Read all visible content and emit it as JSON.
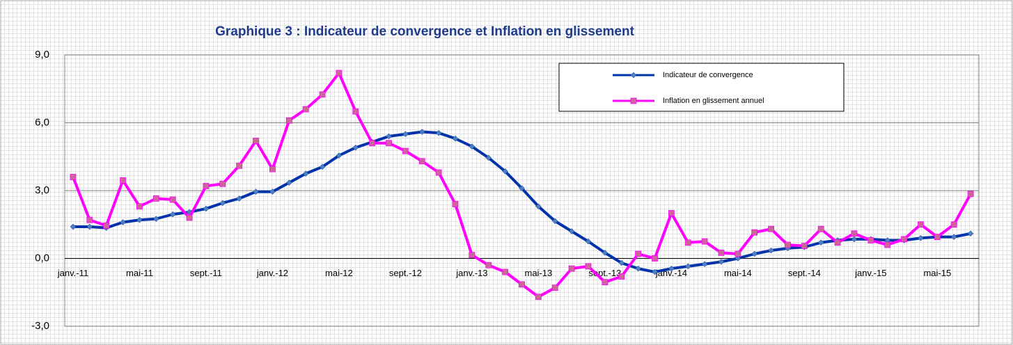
{
  "chart_data": {
    "type": "line",
    "title": "Graphique 3 : Indicateur de convergence et Inflation en glissement",
    "categories": [
      "janv.-11",
      null,
      null,
      null,
      "mai-11",
      null,
      null,
      null,
      "sept.-11",
      null,
      null,
      null,
      "janv.-12",
      null,
      null,
      null,
      "mai-12",
      null,
      null,
      null,
      "sept.-12",
      null,
      null,
      null,
      "janv.-13",
      null,
      null,
      null,
      "mai-13",
      null,
      null,
      null,
      "sept.-13",
      null,
      null,
      null,
      "janv.-14",
      null,
      null,
      null,
      "mai-14",
      null,
      null,
      null,
      "sept.-14",
      null,
      null,
      null,
      "janv.-15",
      null,
      null,
      null,
      "mai-15",
      null,
      null
    ],
    "series": [
      {
        "name": "Indicateur de convergence",
        "color": "#0033aa",
        "values": [
          1.4,
          1.4,
          1.35,
          1.6,
          1.7,
          1.75,
          1.95,
          2.05,
          2.2,
          2.45,
          2.65,
          2.95,
          2.95,
          3.35,
          3.75,
          4.05,
          4.55,
          4.9,
          5.15,
          5.4,
          5.5,
          5.6,
          5.55,
          5.3,
          4.95,
          4.45,
          3.85,
          3.1,
          2.3,
          1.65,
          1.2,
          0.75,
          0.25,
          -0.2,
          -0.45,
          -0.6,
          -0.45,
          -0.35,
          -0.25,
          -0.15,
          0.0,
          0.2,
          0.35,
          0.45,
          0.5,
          0.7,
          0.8,
          0.85,
          0.85,
          0.8,
          0.8,
          0.9,
          0.95,
          0.95,
          1.1
        ]
      },
      {
        "name": "Inflation en glissement annuel",
        "color": "#ff00ff",
        "values": [
          3.6,
          1.7,
          1.45,
          3.45,
          2.3,
          2.65,
          2.6,
          1.8,
          3.2,
          3.3,
          4.1,
          5.2,
          3.95,
          6.1,
          6.6,
          7.25,
          8.2,
          6.5,
          5.1,
          5.1,
          4.75,
          4.3,
          3.8,
          2.4,
          0.15,
          -0.3,
          -0.6,
          -1.15,
          -1.7,
          -1.3,
          -0.45,
          -0.35,
          -1.05,
          -0.8,
          0.2,
          0.0,
          2.0,
          0.7,
          0.75,
          0.25,
          0.2,
          1.15,
          1.3,
          0.6,
          0.55,
          1.3,
          0.7,
          1.1,
          0.8,
          0.6,
          0.85,
          1.5,
          0.95,
          1.5,
          2.85
        ]
      }
    ],
    "ylim": [
      -3,
      9
    ],
    "yticks": [
      {
        "value": -3,
        "label": "-3,0"
      },
      {
        "value": 0,
        "label": "0,0"
      },
      {
        "value": 3,
        "label": "3,0"
      },
      {
        "value": 6,
        "label": "6,0"
      },
      {
        "value": 9,
        "label": "9,0"
      }
    ],
    "grid": true
  }
}
